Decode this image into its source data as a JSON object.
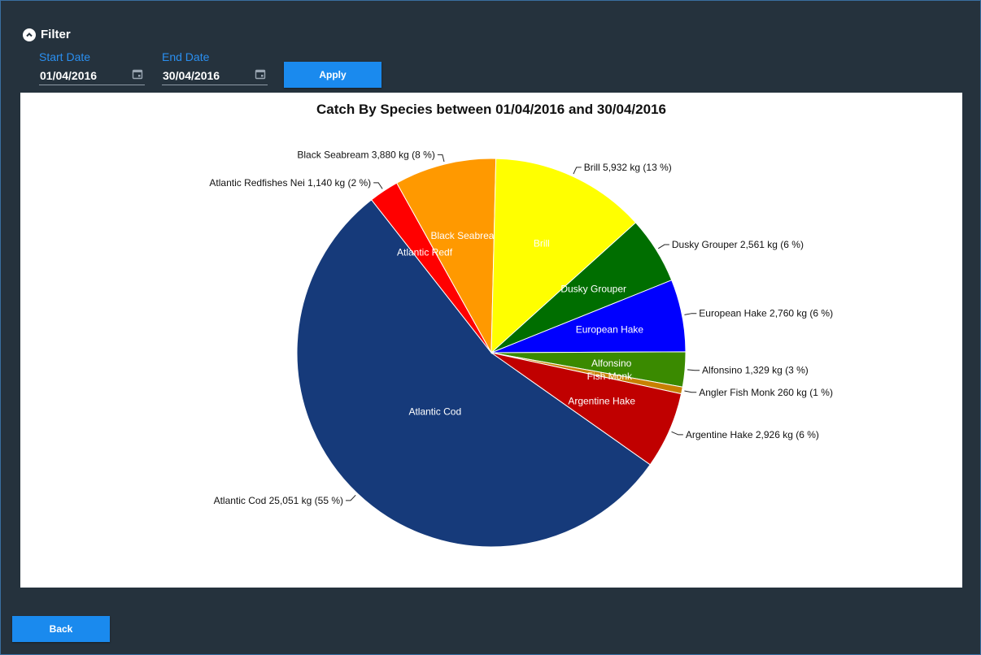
{
  "filter": {
    "label": "Filter",
    "start_date": {
      "label": "Start Date",
      "value": "01/04/2016"
    },
    "end_date": {
      "label": "End Date",
      "value": "30/04/2016"
    },
    "apply_label": "Apply"
  },
  "back_label": "Back",
  "colors": {
    "accent": "#1a8aee",
    "label_blue": "#2a8ff0",
    "background": "#25323d"
  },
  "chart_data": {
    "type": "pie",
    "title": "Catch By Species between 01/04/2016 and 30/04/2016",
    "unit": "kg",
    "slices": [
      {
        "name": "Atlantic Cod",
        "value": 25051,
        "percent": 55,
        "color": "#163a7a",
        "inner_label": "Atlantic Cod",
        "outer_label": "Atlantic Cod 25,051 kg (55 %)"
      },
      {
        "name": "Atlantic Redfishes Nei",
        "value": 1140,
        "percent": 2,
        "color": "#ff0000",
        "inner_label": "Atlantic Redf",
        "outer_label": "Atlantic Redfishes Nei 1,140 kg (2 %)"
      },
      {
        "name": "Black Seabream",
        "value": 3880,
        "percent": 8,
        "color": "#ff9900",
        "inner_label": "Black Seabrea",
        "outer_label": "Black Seabream 3,880 kg (8 %)"
      },
      {
        "name": "Brill",
        "value": 5932,
        "percent": 13,
        "color": "#ffff00",
        "inner_label": "Brill",
        "outer_label": "Brill 5,932 kg (13 %)"
      },
      {
        "name": "Dusky Grouper",
        "value": 2561,
        "percent": 6,
        "color": "#006e00",
        "inner_label": "Dusky Grouper",
        "outer_label": "Dusky Grouper 2,561 kg (6 %)"
      },
      {
        "name": "European Hake",
        "value": 2760,
        "percent": 6,
        "color": "#0000ff",
        "inner_label": "European Hake",
        "outer_label": "European Hake 2,760 kg (6 %)"
      },
      {
        "name": "Alfonsino",
        "value": 1329,
        "percent": 3,
        "color": "#3a8a00",
        "inner_label": "Alfonsino",
        "outer_label": "Alfonsino 1,329 kg (3 %)"
      },
      {
        "name": "Angler Fish Monk",
        "value": 260,
        "percent": 1,
        "color": "#c88000",
        "inner_label": "Fish Monk",
        "outer_label": "Angler Fish Monk 260 kg (1 %)"
      },
      {
        "name": "Argentine Hake",
        "value": 2926,
        "percent": 6,
        "color": "#c00000",
        "inner_label": "Argentine Hake",
        "outer_label": "Argentine Hake 2,926 kg (6 %)"
      }
    ]
  }
}
